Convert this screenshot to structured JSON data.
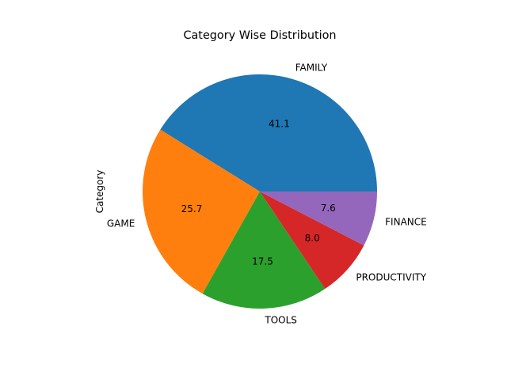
{
  "chart_data": {
    "type": "pie",
    "title": "Category Wise Distribution",
    "ylabel": "Category",
    "labels": [
      "FAMILY",
      "GAME",
      "TOOLS",
      "PRODUCTIVITY",
      "FINANCE"
    ],
    "values": [
      41.1,
      25.7,
      17.5,
      8.0,
      7.6
    ],
    "value_labels": [
      "41.1",
      "25.7",
      "17.5",
      "8.0",
      "7.6"
    ],
    "colors": [
      "#1f77b4",
      "#ff7f0e",
      "#2ca02c",
      "#d62728",
      "#9467bd"
    ],
    "start_angle": 0,
    "direction": "counterclockwise"
  }
}
